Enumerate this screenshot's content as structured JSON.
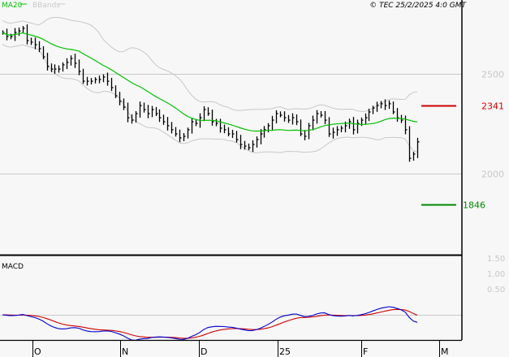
{
  "header": {
    "ma_label": "MA20",
    "bb_label": "BBands",
    "copyright": "© TEC 25/2/2025 4:0 GMT"
  },
  "colors": {
    "background": "#f7f7f7",
    "ma": "#00c000",
    "bands": "#c8c8c8",
    "resistance": "#cc0000",
    "support": "#008800",
    "macd": "#0000cc",
    "signal": "#cc0000",
    "bars": "#000000"
  },
  "chart_data": [
    {
      "type": "ohlc",
      "title": "",
      "indicators": [
        "MA20",
        "BBands"
      ],
      "ylim": [
        1640,
        2770
      ],
      "y_ticks": [
        {
          "value": 2500,
          "label": "2500"
        },
        {
          "value": 2000,
          "label": "2000"
        }
      ],
      "x_ticks": [
        "O",
        "N",
        "D",
        "25",
        "F",
        "M"
      ],
      "levels": [
        {
          "name": "resistance",
          "value": 2341,
          "label": "2341"
        },
        {
          "name": "support",
          "value": 1846,
          "label": "1846"
        }
      ],
      "closes": [
        2707,
        2687,
        2687,
        2707,
        2715,
        2728,
        2667,
        2659,
        2646,
        2626,
        2585,
        2537,
        2524,
        2524,
        2524,
        2545,
        2557,
        2577,
        2553,
        2512,
        2463,
        2463,
        2463,
        2472,
        2472,
        2484,
        2463,
        2431,
        2390,
        2362,
        2333,
        2280,
        2268,
        2301,
        2341,
        2321,
        2301,
        2321,
        2301,
        2280,
        2260,
        2240,
        2220,
        2199,
        2179,
        2187,
        2220,
        2260,
        2252,
        2280,
        2321,
        2301,
        2260,
        2252,
        2228,
        2220,
        2199,
        2199,
        2171,
        2146,
        2138,
        2130,
        2146,
        2171,
        2199,
        2220,
        2240,
        2268,
        2301,
        2293,
        2280,
        2268,
        2280,
        2260,
        2199,
        2187,
        2240,
        2268,
        2301,
        2293,
        2268,
        2199,
        2207,
        2220,
        2228,
        2240,
        2260,
        2220,
        2252,
        2268,
        2280,
        2309,
        2329,
        2341,
        2350,
        2341,
        2350,
        2309,
        2280,
        2268,
        2220,
        2077,
        2098,
        2159
      ]
    },
    {
      "type": "line",
      "title": "MACD",
      "y_ticks": [
        {
          "value": 1.5,
          "label": "1.50"
        },
        {
          "value": 1.0,
          "label": "1.00"
        },
        {
          "value": 0.5,
          "label": "0.50"
        }
      ],
      "series": [
        {
          "name": "MACD"
        },
        {
          "name": "signal"
        }
      ]
    }
  ]
}
